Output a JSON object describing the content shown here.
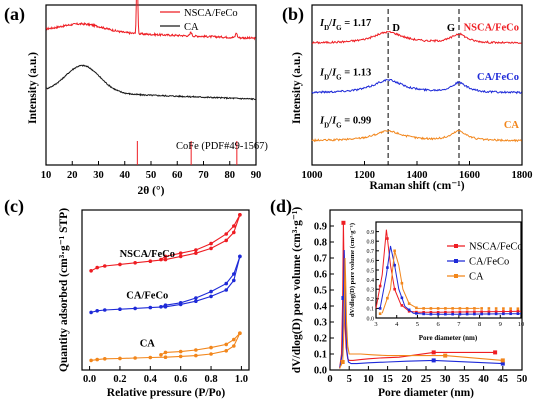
{
  "colors": {
    "red": "#ee1d23",
    "black": "#1a1a1a",
    "blue": "#1e2ad8",
    "orange": "#f2861b"
  },
  "panels": {
    "a": "(a)",
    "b": "(b)",
    "c": "(c)",
    "d": "(d)"
  },
  "chart_data": [
    {
      "id": "a",
      "type": "line",
      "xlabel": "2θ (°)",
      "ylabel": "Intensity (a.u.)",
      "xlim": [
        10,
        90
      ],
      "xticks": [
        10,
        20,
        30,
        40,
        50,
        60,
        70,
        80,
        90
      ],
      "legend": [
        "NSCA/FeCo",
        "CA"
      ],
      "legend_position": "top-right",
      "reference_label": "CoFe (PDF#49-1567)",
      "reference_peaks": [
        44.8,
        65.3,
        82.7
      ],
      "series": [
        {
          "name": "NSCA/FeCo",
          "color": "red",
          "baseline": 0.84,
          "broad": {
            "center": 24,
            "height": 0.05,
            "width": 8
          },
          "sharp": [
            {
              "center": 44.7,
              "height": 0.4,
              "width": 0.25
            },
            {
              "center": 65.2,
              "height": 0.025,
              "width": 0.3
            },
            {
              "center": 82.5,
              "height": 0.03,
              "width": 0.3
            }
          ],
          "noise": 0.012
        },
        {
          "name": "CA",
          "color": "black",
          "baseline": 0.46,
          "broad": {
            "center": 24,
            "height": 0.17,
            "width": 6.5
          },
          "sharp": [],
          "noise": 0.008
        }
      ]
    },
    {
      "id": "b",
      "type": "line",
      "xlabel": "Raman shift (cm⁻¹)",
      "ylabel": "Intensity (a.u.)",
      "xlim": [
        1000,
        1800
      ],
      "xticks": [
        1000,
        1200,
        1400,
        1600,
        1800
      ],
      "d_band": 1290,
      "g_band": 1560,
      "d_label": "D",
      "g_label": "G",
      "ratio_prefix": "I",
      "ratio_D": "D",
      "ratio_G": "G",
      "series": [
        {
          "name": "NSCA/FeCo",
          "color": "red",
          "ratio": "1.17",
          "offset": 0.76,
          "d": 0.07,
          "g": 0.055,
          "slope": 0.0
        },
        {
          "name": "CA/FeCo",
          "color": "blue",
          "ratio": "1.13",
          "offset": 0.45,
          "d": 0.08,
          "g": 0.06,
          "slope": 0.0
        },
        {
          "name": "CA",
          "color": "orange",
          "ratio": "0.99",
          "offset": 0.15,
          "d": 0.06,
          "g": 0.06,
          "slope": 0.0
        }
      ]
    },
    {
      "id": "c",
      "type": "line",
      "xlabel": "Relative pressure (P/Po)",
      "ylabel": "Quantity adsorbed (cm³·g⁻¹ STP)",
      "xlim": [
        -0.05,
        1.05
      ],
      "xticks": [
        0.0,
        0.2,
        0.4,
        0.6,
        0.8,
        1.0
      ],
      "series": [
        {
          "name": "NSCA/FeCo",
          "color": "red",
          "adsorption": [
            [
              0.01,
              0.62
            ],
            [
              0.05,
              0.64
            ],
            [
              0.1,
              0.65
            ],
            [
              0.2,
              0.66
            ],
            [
              0.3,
              0.67
            ],
            [
              0.4,
              0.68
            ],
            [
              0.5,
              0.69
            ],
            [
              0.6,
              0.71
            ],
            [
              0.7,
              0.73
            ],
            [
              0.8,
              0.76
            ],
            [
              0.9,
              0.81
            ],
            [
              0.95,
              0.86
            ],
            [
              0.99,
              0.97
            ]
          ],
          "desorption": [
            [
              0.99,
              0.97
            ],
            [
              0.95,
              0.9
            ],
            [
              0.9,
              0.85
            ],
            [
              0.8,
              0.79
            ],
            [
              0.7,
              0.75
            ],
            [
              0.6,
              0.73
            ],
            [
              0.5,
              0.71
            ],
            [
              0.47,
              0.69
            ]
          ]
        },
        {
          "name": "CA/FeCo",
          "color": "blue",
          "adsorption": [
            [
              0.01,
              0.36
            ],
            [
              0.05,
              0.37
            ],
            [
              0.1,
              0.375
            ],
            [
              0.2,
              0.38
            ],
            [
              0.3,
              0.385
            ],
            [
              0.4,
              0.39
            ],
            [
              0.5,
              0.395
            ],
            [
              0.6,
              0.41
            ],
            [
              0.7,
              0.43
            ],
            [
              0.8,
              0.46
            ],
            [
              0.9,
              0.5
            ],
            [
              0.95,
              0.56
            ],
            [
              0.99,
              0.71
            ]
          ],
          "desorption": [
            [
              0.99,
              0.71
            ],
            [
              0.95,
              0.6
            ],
            [
              0.9,
              0.54
            ],
            [
              0.8,
              0.49
            ],
            [
              0.7,
              0.45
            ],
            [
              0.6,
              0.42
            ],
            [
              0.5,
              0.405
            ],
            [
              0.47,
              0.395
            ]
          ]
        },
        {
          "name": "CA",
          "color": "orange",
          "adsorption": [
            [
              0.01,
              0.06
            ],
            [
              0.05,
              0.065
            ],
            [
              0.1,
              0.07
            ],
            [
              0.2,
              0.072
            ],
            [
              0.3,
              0.075
            ],
            [
              0.4,
              0.078
            ],
            [
              0.5,
              0.08
            ],
            [
              0.6,
              0.085
            ],
            [
              0.7,
              0.09
            ],
            [
              0.8,
              0.1
            ],
            [
              0.9,
              0.12
            ],
            [
              0.95,
              0.15
            ],
            [
              0.99,
              0.23
            ]
          ],
          "desorption": [
            [
              0.99,
              0.23
            ],
            [
              0.95,
              0.19
            ],
            [
              0.9,
              0.16
            ],
            [
              0.8,
              0.14
            ],
            [
              0.7,
              0.125
            ],
            [
              0.6,
              0.115
            ],
            [
              0.5,
              0.11
            ],
            [
              0.47,
              0.095
            ]
          ]
        }
      ]
    },
    {
      "id": "d",
      "type": "line",
      "xlabel": "Pore diameter (nm)",
      "ylabel": "dV/dlog(D) pore volume (cm³·g⁻¹)",
      "xlim": [
        0,
        50
      ],
      "xticks": [
        0,
        5,
        10,
        15,
        20,
        25,
        30,
        35,
        40,
        45,
        50
      ],
      "ylim": [
        0,
        1.0
      ],
      "yticks": [
        0.0,
        0.1,
        0.2,
        0.3,
        0.4,
        0.5,
        0.6,
        0.7,
        0.8,
        0.9
      ],
      "legend_position": "top-right",
      "series": [
        {
          "name": "NSCA/FeCo",
          "color": "red",
          "points": [
            [
              2.5,
              0.01
            ],
            [
              3.0,
              0.1
            ],
            [
              3.3,
              0.45
            ],
            [
              3.5,
              0.92
            ],
            [
              3.7,
              0.55
            ],
            [
              3.9,
              0.3
            ],
            [
              4.2,
              0.14
            ],
            [
              4.6,
              0.07
            ],
            [
              5.0,
              0.06
            ],
            [
              6,
              0.06
            ],
            [
              8,
              0.065
            ],
            [
              10,
              0.07
            ],
            [
              13,
              0.075
            ],
            [
              18,
              0.08
            ],
            [
              27,
              0.11
            ],
            [
              43,
              0.11
            ]
          ]
        },
        {
          "name": "CA/FeCo",
          "color": "blue",
          "points": [
            [
              2.5,
              0.01
            ],
            [
              3.2,
              0.1
            ],
            [
              3.5,
              0.45
            ],
            [
              3.7,
              0.75
            ],
            [
              3.9,
              0.55
            ],
            [
              4.1,
              0.3
            ],
            [
              4.4,
              0.12
            ],
            [
              4.8,
              0.05
            ],
            [
              5.5,
              0.04
            ],
            [
              7,
              0.04
            ],
            [
              10,
              0.045
            ],
            [
              15,
              0.05
            ],
            [
              20,
              0.055
            ],
            [
              27,
              0.06
            ],
            [
              45,
              0.04
            ]
          ]
        },
        {
          "name": "CA",
          "color": "orange",
          "points": [
            [
              2.5,
              0.01
            ],
            [
              3.3,
              0.05
            ],
            [
              3.7,
              0.3
            ],
            [
              3.9,
              0.7
            ],
            [
              4.1,
              0.55
            ],
            [
              4.3,
              0.3
            ],
            [
              4.6,
              0.15
            ],
            [
              5.0,
              0.1
            ],
            [
              6,
              0.1
            ],
            [
              8,
              0.1
            ],
            [
              11,
              0.095
            ],
            [
              15,
              0.09
            ],
            [
              22,
              0.09
            ],
            [
              30,
              0.09
            ],
            [
              45,
              0.06
            ]
          ]
        }
      ],
      "inset": {
        "xlabel": "Pore diameter (nm)",
        "ylabel": "dV/dlog(D) pore volume (cm³·g⁻¹)",
        "xlim": [
          3,
          10
        ],
        "xticks": [
          3,
          4,
          5,
          6,
          7,
          8,
          9,
          10
        ],
        "ylim": [
          0,
          1.0
        ],
        "yticks": [
          0.0,
          0.1,
          0.2,
          0.3,
          0.4,
          0.5,
          0.6,
          0.7,
          0.8,
          0.9
        ]
      }
    }
  ]
}
